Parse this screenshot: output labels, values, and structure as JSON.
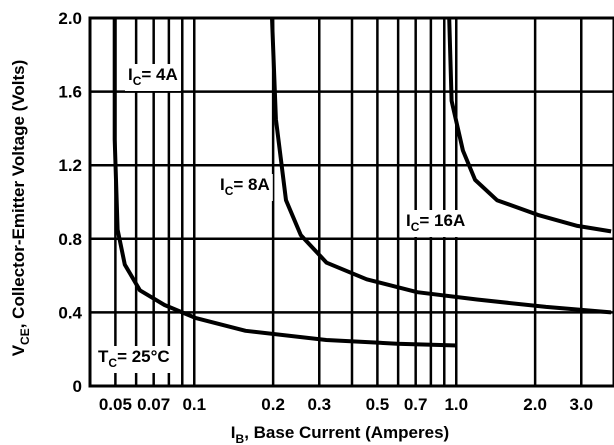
{
  "chart_data": {
    "type": "line",
    "x_label": {
      "base": "I",
      "sub": "B",
      "rest": ", Base Current (Amperes)"
    },
    "y_label": {
      "base": "V",
      "sub": "CE",
      "rest": ", Collector-Emitter Voltage (Volts)"
    },
    "annotation": {
      "base": "T",
      "sub": "C",
      "rest": "= 25°C"
    },
    "x_scale": "log",
    "grid": true,
    "xlim": [
      0.04,
      4
    ],
    "ylim": [
      0,
      2.0
    ],
    "xticks": [
      0.05,
      0.07,
      0.1,
      0.2,
      0.3,
      0.5,
      0.7,
      {
        "value": 1,
        "label": "1.0"
      },
      {
        "value": 2,
        "label": "2.0"
      },
      {
        "value": 3,
        "label": "3.0"
      }
    ],
    "xminor": [
      0.06,
      0.08,
      0.09,
      0.4,
      0.6,
      0.8,
      0.9
    ],
    "yticks": [
      0,
      0.4,
      0.8,
      1.2,
      1.6,
      {
        "value": 2,
        "label": "2.0"
      }
    ],
    "series": [
      {
        "label": {
          "base": "I",
          "sub": "C",
          "rest": "= 4A"
        },
        "color": "#000000",
        "x": [
          0.0497,
          0.0497,
          0.051,
          0.0543,
          0.062,
          0.077,
          0.101,
          0.157,
          0.319,
          0.594,
          1.01
        ],
        "values": [
          2.0,
          1.34,
          0.85,
          0.66,
          0.52,
          0.44,
          0.37,
          0.3,
          0.25,
          0.23,
          0.22
        ]
      },
      {
        "label": {
          "base": "I",
          "sub": "C",
          "rest": "= 8A"
        },
        "color": "#000000",
        "x": [
          0.198,
          0.205,
          0.224,
          0.255,
          0.32,
          0.455,
          0.71,
          1.2,
          2.2,
          3.9
        ],
        "values": [
          2.0,
          1.45,
          1.01,
          0.82,
          0.67,
          0.58,
          0.51,
          0.47,
          0.43,
          0.4
        ]
      },
      {
        "label": {
          "base": "I",
          "sub": "C",
          "rest": "= 16A"
        },
        "color": "#000000",
        "x": [
          0.94,
          0.96,
          1.06,
          1.18,
          1.43,
          2.05,
          2.9,
          3.9
        ],
        "values": [
          2.0,
          1.55,
          1.28,
          1.12,
          1.01,
          0.93,
          0.87,
          0.84
        ]
      }
    ]
  }
}
